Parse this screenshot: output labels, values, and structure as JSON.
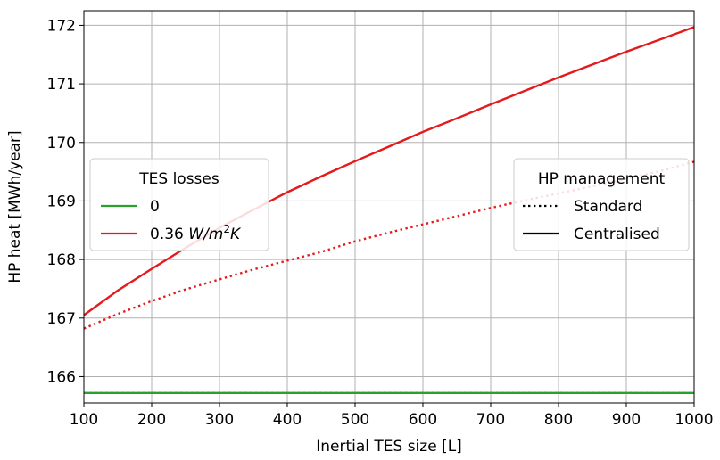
{
  "chart_data": {
    "type": "line",
    "title": "",
    "xlabel": "Inertial TES size [L]",
    "ylabel": "HP heat [MWh/year]",
    "xlim": [
      100,
      1000
    ],
    "ylim": [
      165.55,
      172.25
    ],
    "xticks": [
      100,
      200,
      300,
      400,
      500,
      600,
      700,
      800,
      900,
      1000
    ],
    "yticks": [
      166,
      167,
      168,
      169,
      170,
      171,
      172
    ],
    "grid": true,
    "x": [
      100,
      150,
      200,
      250,
      300,
      350,
      400,
      450,
      500,
      550,
      600,
      650,
      700,
      750,
      800,
      850,
      900,
      950,
      1000
    ],
    "series": [
      {
        "losses": "0",
        "management": "Standard",
        "color": "#2ca02c",
        "dash": "dotted",
        "values": [
          165.72,
          165.72,
          165.72,
          165.72,
          165.72,
          165.72,
          165.72,
          165.72,
          165.72,
          165.72,
          165.72,
          165.72,
          165.72,
          165.72,
          165.72,
          165.72,
          165.72,
          165.72,
          165.72
        ]
      },
      {
        "losses": "0",
        "management": "Centralised",
        "color": "#2ca02c",
        "dash": "solid",
        "values": [
          165.72,
          165.72,
          165.72,
          165.72,
          165.72,
          165.72,
          165.72,
          165.72,
          165.72,
          165.72,
          165.72,
          165.72,
          165.72,
          165.72,
          165.72,
          165.72,
          165.72,
          165.72,
          165.72
        ]
      },
      {
        "losses": "0.36 W/m2K",
        "management": "Standard",
        "color": "#e41a1c",
        "dash": "dotted",
        "values": [
          166.82,
          167.07,
          167.29,
          167.49,
          167.66,
          167.83,
          167.98,
          168.13,
          168.31,
          168.46,
          168.6,
          168.74,
          168.88,
          169.01,
          169.13,
          169.25,
          169.38,
          169.51,
          169.67
        ]
      },
      {
        "losses": "0.36 W/m2K",
        "management": "Centralised",
        "color": "#e41a1c",
        "dash": "solid",
        "values": [
          167.05,
          167.47,
          167.84,
          168.2,
          168.54,
          168.85,
          169.15,
          169.42,
          169.68,
          169.93,
          170.18,
          170.41,
          170.65,
          170.88,
          171.11,
          171.33,
          171.55,
          171.76,
          171.97
        ]
      }
    ],
    "legends": [
      {
        "title": "TES losses",
        "placement": "center-left",
        "entries": [
          {
            "label_plain": "0",
            "color": "#2ca02c",
            "dash": "solid"
          },
          {
            "label_prefix": "0.36 ",
            "label_w": "W",
            "label_mid": "/m",
            "label_sup": "2",
            "label_k": "K",
            "color": "#e41a1c",
            "dash": "solid"
          }
        ]
      },
      {
        "title": "HP management",
        "placement": "center-right",
        "entries": [
          {
            "label_plain": "Standard",
            "color": "#000000",
            "dash": "dotted"
          },
          {
            "label_plain": "Centralised",
            "color": "#000000",
            "dash": "solid"
          }
        ]
      }
    ]
  }
}
